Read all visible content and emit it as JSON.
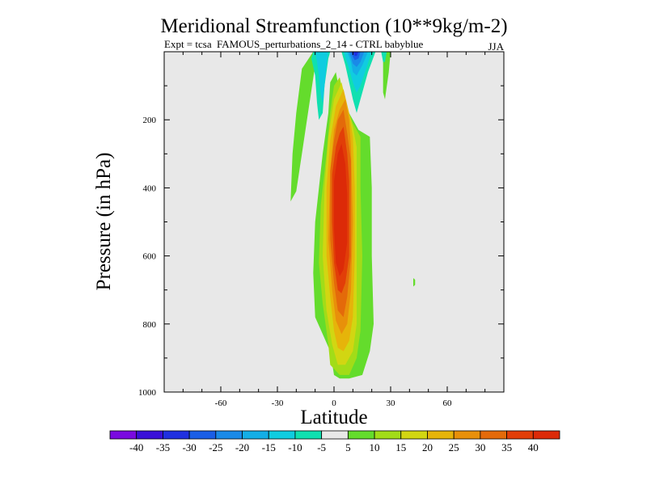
{
  "chart_data": {
    "type": "contour",
    "title": "Meridional Streamfunction (10**9kg/m-2)",
    "subtitle_left_a": "Expt = tcsa",
    "subtitle_left_b": "FAMOUS_perturbations_2_14 - CTRL babyblue",
    "subtitle_right": "JJA",
    "xlabel": "Latitude",
    "ylabel": "Pressure (in hPa)",
    "xlim": [
      -90,
      90
    ],
    "ylim": [
      1000,
      0
    ],
    "x_ticks": [
      {
        "v": -60,
        "label": "-60"
      },
      {
        "v": -30,
        "label": "-30"
      },
      {
        "v": 0,
        "label": "0"
      },
      {
        "v": 30,
        "label": "30"
      },
      {
        "v": 60,
        "label": "60"
      }
    ],
    "y_ticks": [
      {
        "v": 200,
        "label": "200"
      },
      {
        "v": 400,
        "label": "400"
      },
      {
        "v": 600,
        "label": "600"
      },
      {
        "v": 800,
        "label": "800"
      },
      {
        "v": 1000,
        "label": "1000"
      }
    ],
    "colorbar": {
      "levels": [
        "-40",
        "-35",
        "-30",
        "-25",
        "-20",
        "-15",
        "-10",
        "-5",
        "5",
        "10",
        "15",
        "20",
        "25",
        "30",
        "35",
        "40"
      ],
      "colors": [
        "#7a0ae0",
        "#3a10d8",
        "#2030e0",
        "#1a5ee6",
        "#1a8ae8",
        "#14aee6",
        "#10cce0",
        "#10e0b0",
        "#e8e8e8",
        "#64dc2c",
        "#a2dc18",
        "#d2d612",
        "#e6b40a",
        "#e8900a",
        "#e46a0a",
        "#e23e08",
        "#dc2a08"
      ]
    },
    "plot_background": "#e8e8e8",
    "regions": [
      {
        "level": 5,
        "color": "#64dc2c",
        "points": [
          [
            -11,
            0
          ],
          [
            -17,
            50
          ],
          [
            -20,
            180
          ],
          [
            -22,
            300
          ],
          [
            -23,
            440
          ],
          [
            -20,
            410
          ],
          [
            -17,
            300
          ],
          [
            -13,
            150
          ],
          [
            -10,
            40
          ]
        ]
      },
      {
        "level": 5,
        "color": "#64dc2c",
        "points": [
          [
            26,
            0
          ],
          [
            30,
            0
          ],
          [
            29,
            60
          ],
          [
            27,
            140
          ],
          [
            26,
            120
          ]
        ]
      },
      {
        "level": 5,
        "color": "#64dc2c",
        "points": [
          [
            42,
            665
          ],
          [
            43,
            670
          ],
          [
            43,
            685
          ],
          [
            42,
            690
          ]
        ]
      },
      {
        "level": 5,
        "color": "#64dc2c",
        "points": [
          [
            1,
            60
          ],
          [
            3,
            120
          ],
          [
            7,
            170
          ],
          [
            13,
            230
          ],
          [
            19,
            250
          ],
          [
            20,
            400
          ],
          [
            20,
            600
          ],
          [
            21,
            800
          ],
          [
            19,
            880
          ],
          [
            15,
            950
          ],
          [
            8,
            960
          ],
          [
            3,
            960
          ],
          [
            0,
            950
          ],
          [
            -2,
            880
          ],
          [
            -6,
            830
          ],
          [
            -10,
            780
          ],
          [
            -11,
            650
          ],
          [
            -10,
            500
          ],
          [
            -6,
            300
          ],
          [
            -3,
            180
          ],
          [
            -2,
            90
          ]
        ]
      },
      {
        "level": 10,
        "color": "#a2dc18",
        "points": [
          [
            3,
            75
          ],
          [
            6,
            150
          ],
          [
            10,
            210
          ],
          [
            14,
            250
          ],
          [
            14,
            400
          ],
          [
            15,
            600
          ],
          [
            14,
            820
          ],
          [
            12,
            900
          ],
          [
            8,
            950
          ],
          [
            3,
            950
          ],
          [
            -2,
            920
          ],
          [
            -3,
            860
          ],
          [
            -6,
            740
          ],
          [
            -8,
            620
          ],
          [
            -7,
            450
          ],
          [
            -4,
            300
          ],
          [
            -2,
            180
          ],
          [
            0,
            100
          ]
        ]
      },
      {
        "level": 15,
        "color": "#d2d612",
        "points": [
          [
            4,
            90
          ],
          [
            7,
            160
          ],
          [
            10,
            220
          ],
          [
            12,
            280
          ],
          [
            12,
            500
          ],
          [
            12,
            800
          ],
          [
            10,
            880
          ],
          [
            6,
            920
          ],
          [
            2,
            920
          ],
          [
            -1,
            860
          ],
          [
            -4,
            760
          ],
          [
            -6,
            600
          ],
          [
            -5,
            400
          ],
          [
            -3,
            250
          ],
          [
            0,
            140
          ]
        ]
      },
      {
        "level": 20,
        "color": "#e6b40a",
        "points": [
          [
            5,
            110
          ],
          [
            8,
            180
          ],
          [
            10,
            250
          ],
          [
            11,
            400
          ],
          [
            11,
            600
          ],
          [
            10,
            780
          ],
          [
            8,
            850
          ],
          [
            5,
            880
          ],
          [
            2,
            870
          ],
          [
            0,
            820
          ],
          [
            -2,
            720
          ],
          [
            -4,
            600
          ],
          [
            -4,
            400
          ],
          [
            -2,
            260
          ],
          [
            1,
            160
          ]
        ]
      },
      {
        "level": 25,
        "color": "#e8900a",
        "points": [
          [
            6,
            140
          ],
          [
            8,
            200
          ],
          [
            9,
            280
          ],
          [
            10,
            500
          ],
          [
            9,
            700
          ],
          [
            7,
            800
          ],
          [
            4,
            830
          ],
          [
            1,
            790
          ],
          [
            -1,
            700
          ],
          [
            -3,
            550
          ],
          [
            -2,
            350
          ],
          [
            0,
            230
          ],
          [
            3,
            170
          ]
        ]
      },
      {
        "level": 30,
        "color": "#e46a0a",
        "points": [
          [
            5,
            170
          ],
          [
            7,
            240
          ],
          [
            9,
            320
          ],
          [
            9,
            600
          ],
          [
            7,
            720
          ],
          [
            5,
            780
          ],
          [
            2,
            760
          ],
          [
            0,
            680
          ],
          [
            -2,
            550
          ],
          [
            -2,
            350
          ],
          [
            0,
            260
          ],
          [
            2,
            200
          ]
        ]
      },
      {
        "level": 35,
        "color": "#e23e08",
        "points": [
          [
            5,
            220
          ],
          [
            7,
            300
          ],
          [
            8,
            380
          ],
          [
            8,
            600
          ],
          [
            6,
            680
          ],
          [
            4,
            710
          ],
          [
            2,
            700
          ],
          [
            0,
            620
          ],
          [
            -1,
            500
          ],
          [
            -1,
            360
          ],
          [
            1,
            280
          ],
          [
            3,
            240
          ]
        ]
      },
      {
        "level": 40,
        "color": "#dc2a08",
        "points": [
          [
            4,
            270
          ],
          [
            6,
            330
          ],
          [
            7,
            420
          ],
          [
            7,
            560
          ],
          [
            5,
            640
          ],
          [
            3,
            660
          ],
          [
            1,
            620
          ],
          [
            0,
            520
          ],
          [
            0,
            380
          ],
          [
            2,
            300
          ]
        ]
      },
      {
        "level": -5,
        "color": "#10e0b0",
        "points": [
          [
            -11,
            0
          ],
          [
            -2,
            0
          ],
          [
            -3,
            20
          ],
          [
            -5,
            100
          ],
          [
            -6,
            180
          ],
          [
            -8,
            200
          ],
          [
            -9,
            150
          ],
          [
            -10,
            70
          ],
          [
            -12,
            20
          ]
        ]
      },
      {
        "level": -5,
        "color": "#10e0b0",
        "points": [
          [
            4,
            0
          ],
          [
            22,
            0
          ],
          [
            18,
            60
          ],
          [
            15,
            120
          ],
          [
            13,
            160
          ],
          [
            12,
            180
          ],
          [
            10,
            140
          ],
          [
            8,
            90
          ],
          [
            6,
            40
          ]
        ]
      },
      {
        "level": -10,
        "color": "#10cce0",
        "points": [
          [
            -10,
            0
          ],
          [
            -3,
            0
          ],
          [
            -4,
            40
          ],
          [
            -5,
            100
          ],
          [
            -6,
            150
          ],
          [
            -7,
            130
          ],
          [
            -8,
            70
          ],
          [
            -9,
            30
          ]
        ]
      },
      {
        "level": -10,
        "color": "#10cce0",
        "points": [
          [
            5,
            0
          ],
          [
            20,
            0
          ],
          [
            17,
            50
          ],
          [
            14,
            100
          ],
          [
            12,
            120
          ],
          [
            10,
            90
          ],
          [
            8,
            50
          ]
        ]
      },
      {
        "level": -15,
        "color": "#14aee6",
        "points": [
          [
            7,
            0
          ],
          [
            18,
            0
          ],
          [
            15,
            40
          ],
          [
            12,
            70
          ],
          [
            10,
            60
          ],
          [
            9,
            30
          ]
        ]
      },
      {
        "level": -20,
        "color": "#1a8ae8",
        "points": [
          [
            8,
            0
          ],
          [
            16,
            0
          ],
          [
            14,
            30
          ],
          [
            12,
            45
          ],
          [
            10,
            35
          ]
        ]
      },
      {
        "level": -25,
        "color": "#1a5ee6",
        "points": [
          [
            9,
            0
          ],
          [
            14,
            0
          ],
          [
            13,
            20
          ],
          [
            11,
            25
          ],
          [
            10,
            15
          ]
        ]
      },
      {
        "level": -30,
        "color": "#2030e0",
        "points": [
          [
            10,
            0
          ],
          [
            13,
            0
          ],
          [
            12,
            12
          ],
          [
            11,
            12
          ]
        ]
      },
      {
        "level": -5,
        "color": "#10e0b0",
        "points": [
          [
            25,
            0
          ],
          [
            28,
            0
          ],
          [
            27,
            30
          ],
          [
            26,
            30
          ]
        ]
      }
    ]
  }
}
